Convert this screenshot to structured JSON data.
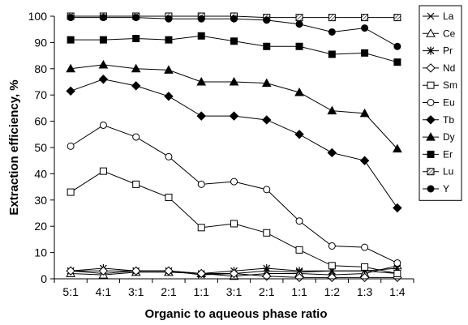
{
  "chart_data": {
    "type": "line",
    "xlabel": "Organic to aqueous phase ratio",
    "ylabel": "Extraction efficiency, %",
    "categories": [
      "5:1",
      "4:1",
      "3:1",
      "2:1",
      "1:1",
      "3:1",
      "2:1",
      "1:1",
      "1:2",
      "1:3",
      "1:4"
    ],
    "ylim": [
      0,
      100
    ],
    "yticks": [
      0,
      10,
      20,
      30,
      40,
      50,
      60,
      70,
      80,
      90,
      100
    ],
    "grid": false,
    "legend_position": "right",
    "series": [
      {
        "name": "La",
        "marker": "x",
        "values": [
          3,
          2,
          3,
          3,
          1.5,
          2,
          3,
          2.5,
          3,
          3,
          2
        ]
      },
      {
        "name": "Ce",
        "marker": "triangle-open",
        "values": [
          2,
          1.5,
          2.5,
          2.5,
          2,
          1,
          2,
          2,
          1.5,
          2,
          5
        ]
      },
      {
        "name": "Pr",
        "marker": "asterisk",
        "values": [
          3,
          4,
          3,
          3,
          2,
          3,
          4,
          3,
          3,
          3,
          4
        ]
      },
      {
        "name": "Nd",
        "marker": "diamond-open",
        "values": [
          3,
          3,
          3,
          3,
          2,
          2,
          1,
          0.5,
          0.5,
          0.5,
          0.5
        ]
      },
      {
        "name": "Sm",
        "marker": "square-open",
        "values": [
          33,
          41,
          36,
          31,
          19.5,
          21,
          17.5,
          11,
          5,
          4.5,
          2
        ]
      },
      {
        "name": "Eu",
        "marker": "circle-open",
        "values": [
          50.5,
          58.5,
          54,
          46.5,
          36,
          37,
          34,
          22,
          12.5,
          12,
          6
        ]
      },
      {
        "name": "Tb",
        "marker": "diamond-filled",
        "values": [
          71.5,
          76,
          73.5,
          69.5,
          62,
          62,
          60.5,
          55,
          48,
          45,
          27
        ]
      },
      {
        "name": "Dy",
        "marker": "triangle-filled",
        "values": [
          80,
          81.5,
          80,
          79.5,
          75,
          75,
          74.5,
          71,
          64,
          63,
          49.5
        ]
      },
      {
        "name": "Er",
        "marker": "square-filled",
        "values": [
          91,
          91,
          91.5,
          91,
          92.5,
          90.5,
          88.5,
          88.5,
          85.5,
          86,
          82.5
        ]
      },
      {
        "name": "Lu",
        "marker": "square-hatched",
        "values": [
          100,
          100,
          100,
          100,
          100,
          100,
          99.5,
          99.5,
          99.5,
          99.5,
          99.5
        ]
      },
      {
        "name": "Y",
        "marker": "circle-filled",
        "values": [
          99.5,
          99.5,
          99.5,
          99,
          99,
          99,
          98.5,
          97,
          94,
          95.5,
          88.5
        ]
      }
    ]
  }
}
